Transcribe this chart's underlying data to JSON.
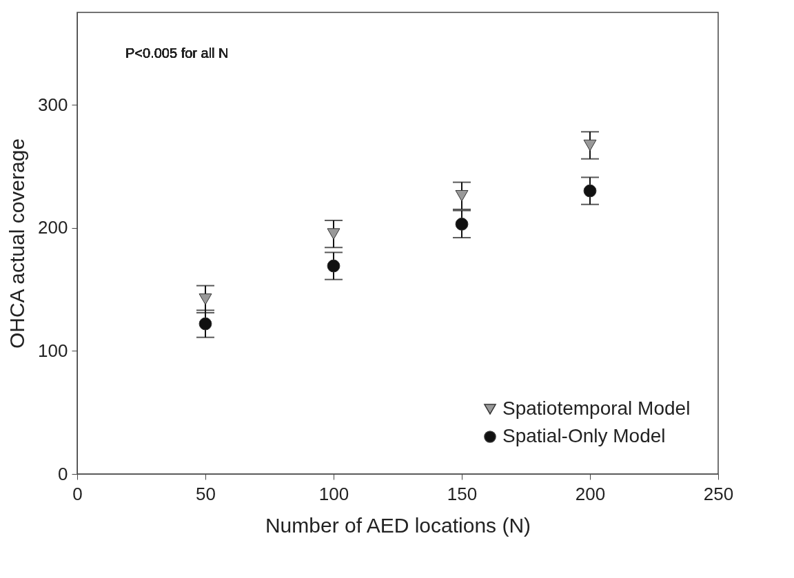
{
  "chart_data": {
    "type": "scatter",
    "xlabel": "Number of AED locations (N)",
    "ylabel": "OHCA actual coverage",
    "x": [
      50,
      100,
      150,
      200
    ],
    "series": [
      {
        "name": "Spatiotemporal Model",
        "color": "#999999",
        "marker": "triangle",
        "values": [
          142,
          195,
          226,
          267
        ],
        "errors": [
          11,
          11,
          11,
          11
        ]
      },
      {
        "name": "Spatial-Only Model",
        "color": "#111111",
        "marker": "circle",
        "values": [
          122,
          169,
          203,
          230
        ],
        "errors": [
          11,
          11,
          11,
          11
        ]
      }
    ],
    "xlim": [
      0,
      250
    ],
    "xticks": [
      0,
      50,
      100,
      150,
      200,
      250
    ],
    "ylim": [
      0,
      375
    ],
    "yticks": [
      0,
      100,
      200,
      300
    ],
    "annotations": [
      "P<0.005 for all N"
    ],
    "legend": "bottom right",
    "grid": false
  }
}
